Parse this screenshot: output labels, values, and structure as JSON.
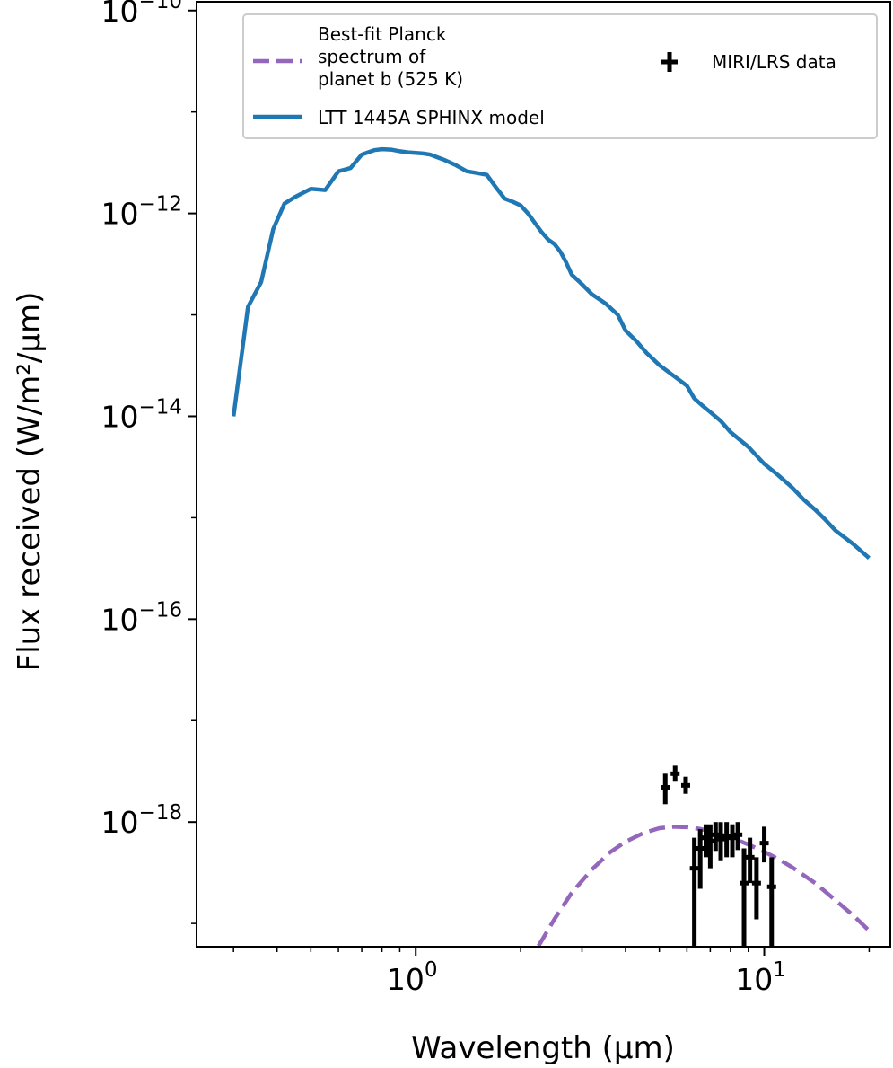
{
  "chart_data": {
    "type": "line",
    "xlabel": "Wavelength (μm)",
    "ylabel": "Flux received (W/m²/μm)",
    "x_scale": "log",
    "y_scale": "log",
    "xlim": [
      0.235,
      23.0
    ],
    "ylim": [
      5.9e-20,
      1.22e-10
    ],
    "x_ticks": [
      {
        "value": 1,
        "base": "10",
        "exp": "0"
      },
      {
        "value": 10,
        "base": "10",
        "exp": "1"
      }
    ],
    "y_ticks": [
      {
        "value": 1e-10,
        "base": "10",
        "exp": "−10"
      },
      {
        "value": 1e-12,
        "base": "10",
        "exp": "−12"
      },
      {
        "value": 1e-14,
        "base": "10",
        "exp": "−14"
      },
      {
        "value": 1e-16,
        "base": "10",
        "exp": "−16"
      },
      {
        "value": 1e-18,
        "base": "10",
        "exp": "−18"
      }
    ],
    "grid": false,
    "legend": {
      "placement": "top-right",
      "entries": [
        {
          "label_lines": [
            "Best-fit Planck",
            "spectrum of",
            "planet b (525 K)"
          ],
          "style": "dashed-line",
          "color": "#9467bd"
        },
        {
          "label_lines": [
            "LTT 1445A SPHINX model"
          ],
          "style": "line",
          "color": "#1f77b4"
        },
        {
          "label_lines": [
            "MIRI/LRS data"
          ],
          "style": "errorbar",
          "color": "#000000"
        }
      ]
    },
    "series": [
      {
        "name": "LTT 1445A SPHINX model",
        "style": "line",
        "color": "#1f77b4",
        "x": [
          0.3,
          0.33,
          0.36,
          0.39,
          0.42,
          0.45,
          0.5,
          0.55,
          0.6,
          0.65,
          0.7,
          0.73,
          0.76,
          0.8,
          0.85,
          0.9,
          0.95,
          1.0,
          1.05,
          1.1,
          1.2,
          1.3,
          1.4,
          1.5,
          1.6,
          1.7,
          1.8,
          1.9,
          2.0,
          2.1,
          2.2,
          2.3,
          2.4,
          2.5,
          2.6,
          2.7,
          2.8,
          3.0,
          3.2,
          3.5,
          3.8,
          4.0,
          4.3,
          4.6,
          5.0,
          5.5,
          6.0,
          6.3,
          6.6,
          7.0,
          7.5,
          8.0,
          9.0,
          10.0,
          11.0,
          12.0,
          13.0,
          14.0,
          15.0,
          16.0,
          18.0,
          20.0
        ],
        "y": [
          1e-14,
          1.2e-13,
          2.1e-13,
          7e-13,
          1.25e-12,
          1.45e-12,
          1.75e-12,
          1.7e-12,
          2.6e-12,
          2.8e-12,
          3.8e-12,
          4e-12,
          4.2e-12,
          4.3e-12,
          4.25e-12,
          4.1e-12,
          4e-12,
          3.95e-12,
          3.9e-12,
          3.8e-12,
          3.4e-12,
          3e-12,
          2.6e-12,
          2.5e-12,
          2.4e-12,
          1.8e-12,
          1.4e-12,
          1.3e-12,
          1.2e-12,
          1e-12,
          8e-13,
          6.5e-13,
          5.5e-13,
          5e-13,
          4.2e-13,
          3.3e-13,
          2.5e-13,
          2e-13,
          1.6e-13,
          1.3e-13,
          1e-13,
          7e-14,
          5.5e-14,
          4.2e-14,
          3.2e-14,
          2.5e-14,
          2e-14,
          1.5e-14,
          1.3e-14,
          1.1e-14,
          9e-15,
          7e-15,
          5e-15,
          3.4e-15,
          2.6e-15,
          2e-15,
          1.5e-15,
          1.2e-15,
          9.5e-16,
          7.5e-16,
          5.5e-16,
          4e-16
        ]
      },
      {
        "name": "Best-fit Planck spectrum of planet b (525 K)",
        "style": "dashed",
        "color": "#9467bd",
        "temperature_K": 525,
        "x": [
          2.25,
          2.5,
          2.8,
          3.2,
          3.6,
          4.0,
          4.5,
          5.0,
          5.5,
          6.0,
          6.5,
          7.0,
          8.0,
          9.0,
          10.0,
          11.0,
          12.0,
          14.0,
          16.0,
          18.0,
          20.0
        ],
        "y": [
          6e-20,
          1.1e-19,
          2e-19,
          3.4e-19,
          5e-19,
          6.4e-19,
          7.8e-19,
          8.7e-19,
          9e-19,
          8.9e-19,
          8.6e-19,
          8.1e-19,
          7.1e-19,
          6e-19,
          5.1e-19,
          4.3e-19,
          3.6e-19,
          2.5e-19,
          1.7e-19,
          1.2e-19,
          8.5e-20
        ]
      },
      {
        "name": "MIRI/LRS data",
        "style": "errorbar",
        "color": "#000000",
        "points": [
          {
            "x": 5.2,
            "y": 2.2e-18,
            "ylo": 1.5e-18,
            "yhi": 3e-18
          },
          {
            "x": 5.55,
            "y": 3e-18,
            "ylo": 2.5e-18,
            "yhi": 3.6e-18
          },
          {
            "x": 5.95,
            "y": 2.3e-18,
            "ylo": 1.9e-18,
            "yhi": 2.8e-18
          },
          {
            "x": 6.3,
            "y": 3.5e-19,
            "ylo": 5.9e-20,
            "yhi": 7e-19
          },
          {
            "x": 6.55,
            "y": 5.5e-19,
            "ylo": 2.2e-19,
            "yhi": 8.5e-19
          },
          {
            "x": 6.8,
            "y": 7e-19,
            "ylo": 4.5e-19,
            "yhi": 9.5e-19
          },
          {
            "x": 7.0,
            "y": 6.5e-19,
            "ylo": 3.5e-19,
            "yhi": 9.5e-19
          },
          {
            "x": 7.25,
            "y": 7.5e-19,
            "ylo": 5.2e-19,
            "yhi": 1e-18
          },
          {
            "x": 7.5,
            "y": 6.8e-19,
            "ylo": 4.2e-19,
            "yhi": 1e-18
          },
          {
            "x": 7.8,
            "y": 7.3e-19,
            "ylo": 4.5e-19,
            "yhi": 1e-18
          },
          {
            "x": 8.1,
            "y": 7e-19,
            "ylo": 4.5e-19,
            "yhi": 9.5e-19
          },
          {
            "x": 8.4,
            "y": 7.5e-19,
            "ylo": 5.3e-19,
            "yhi": 1e-18
          },
          {
            "x": 8.75,
            "y": 2.5e-19,
            "ylo": 5.9e-20,
            "yhi": 5.5e-19
          },
          {
            "x": 9.1,
            "y": 4.5e-19,
            "ylo": 2.5e-19,
            "yhi": 7e-19
          },
          {
            "x": 9.5,
            "y": 2.5e-19,
            "ylo": 1.1e-19,
            "yhi": 4.5e-19
          },
          {
            "x": 10.0,
            "y": 6.2e-19,
            "ylo": 4e-19,
            "yhi": 9e-19
          },
          {
            "x": 10.5,
            "y": 2.3e-19,
            "ylo": 5.9e-20,
            "yhi": 4.5e-19
          }
        ]
      }
    ]
  }
}
